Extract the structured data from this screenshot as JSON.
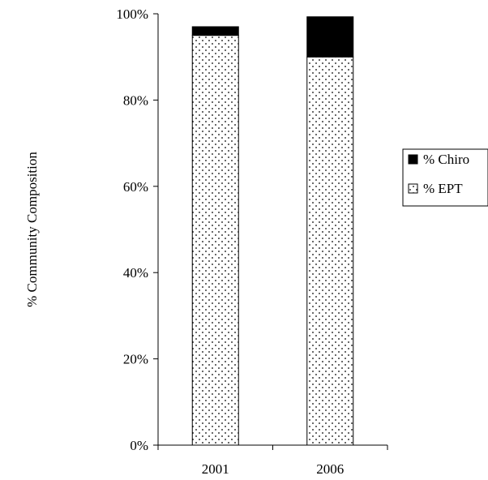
{
  "chart_data": {
    "type": "bar",
    "stacked": true,
    "categories": [
      "2001",
      "2006"
    ],
    "series": [
      {
        "name": "% EPT",
        "values": [
          95,
          90
        ],
        "pattern": "dotted",
        "color": "#ffffff"
      },
      {
        "name": "% Chiro",
        "values": [
          2,
          9.3
        ],
        "pattern": "solid",
        "color": "#000000"
      }
    ],
    "title": "",
    "xlabel": "",
    "ylabel": "% Community Composition",
    "ylim": [
      0,
      100
    ],
    "yticks": [
      "0%",
      "20%",
      "40%",
      "60%",
      "80%",
      "100%"
    ],
    "grid": false,
    "legend": {
      "position": "right",
      "entries": [
        "% Chiro",
        "% EPT"
      ]
    }
  }
}
